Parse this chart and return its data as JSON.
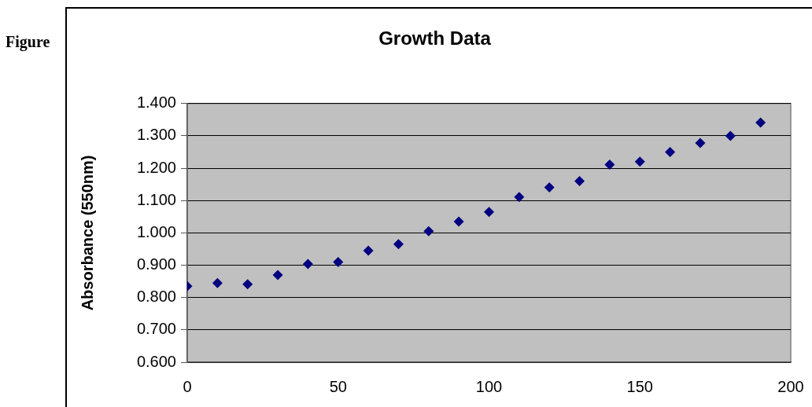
{
  "chart_data": {
    "type": "scatter",
    "title": "Growth Data",
    "ylabel": "Absorbance (550nm)",
    "annotations": [
      "Figure"
    ],
    "x": [
      0,
      10,
      20,
      30,
      40,
      50,
      60,
      70,
      80,
      90,
      100,
      110,
      120,
      130,
      140,
      150,
      160,
      170,
      180,
      190
    ],
    "series": [
      {
        "color": "#000080",
        "values": [
          0.835,
          0.845,
          0.841,
          0.87,
          0.904,
          0.91,
          0.945,
          0.965,
          1.005,
          1.035,
          1.065,
          1.111,
          1.141,
          1.16,
          1.211,
          1.22,
          1.25,
          1.278,
          1.3,
          1.341
        ]
      }
    ],
    "xlim": [
      0,
      200
    ],
    "xticks": [
      0,
      50,
      100,
      150,
      200
    ],
    "ylim": [
      0.6,
      1.4
    ],
    "yticks": [
      {
        "value": 0.6,
        "label": "0.600"
      },
      {
        "value": 0.7,
        "label": "0.700"
      },
      {
        "value": 0.8,
        "label": "0.800"
      },
      {
        "value": 0.9,
        "label": "0.900"
      },
      {
        "value": 1.0,
        "label": "1.000"
      },
      {
        "value": 1.1,
        "label": "1.100"
      },
      {
        "value": 1.2,
        "label": "1.200"
      },
      {
        "value": 1.3,
        "label": "1.300"
      },
      {
        "value": 1.4,
        "label": "1.400"
      }
    ],
    "grid": "y",
    "legend": false,
    "marker": "diamond"
  }
}
